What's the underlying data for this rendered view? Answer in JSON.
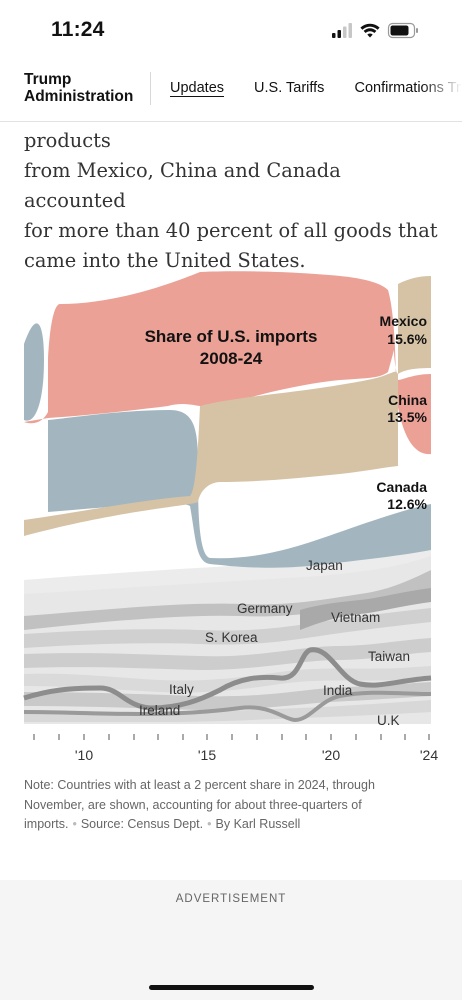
{
  "status_bar": {
    "time": "11:24"
  },
  "nav": {
    "brand_line1": "Trump",
    "brand_line2": "Administration",
    "links": [
      "Updates",
      "U.S. Tariffs",
      "Confirmations Tra"
    ]
  },
  "article": {
    "lines": [
      "the last full year data is available, products",
      "from Mexico, China and Canada accounted",
      "for more than 40 percent of all goods that",
      "came into the United States."
    ]
  },
  "chart_data": {
    "type": "area",
    "title": "Share of U.S. imports",
    "subtitle": "2008-24",
    "x_axis_labels": [
      "'10",
      "'15",
      "'20",
      "'24"
    ],
    "x_range": [
      2008,
      2024
    ],
    "highlighted": [
      {
        "name": "Mexico",
        "value_label": "15.6%",
        "share": 15.6,
        "color": "#d6c3a6"
      },
      {
        "name": "China",
        "value_label": "13.5%",
        "share": 13.5,
        "color": "#eba196"
      },
      {
        "name": "Canada",
        "value_label": "12.6%",
        "share": 12.6,
        "color": "#a3b6c0"
      }
    ],
    "other_countries": [
      "Japan",
      "Germany",
      "S. Korea",
      "Vietnam",
      "Taiwan",
      "Italy",
      "India",
      "Ireland",
      "U.K"
    ],
    "background_band_color": "#e6e6e6",
    "mid_band_color": "#bdbdbd",
    "dark_line_color": "#8a8a8a"
  },
  "note": {
    "text": "Note: Countries with at least a 2 percent share in 2024, through November, are shown, accounting for about three-quarters of imports.",
    "source": "Source: Census Dept.",
    "byline": "By Karl Russell"
  },
  "ad": {
    "label": "ADVERTISEMENT"
  }
}
